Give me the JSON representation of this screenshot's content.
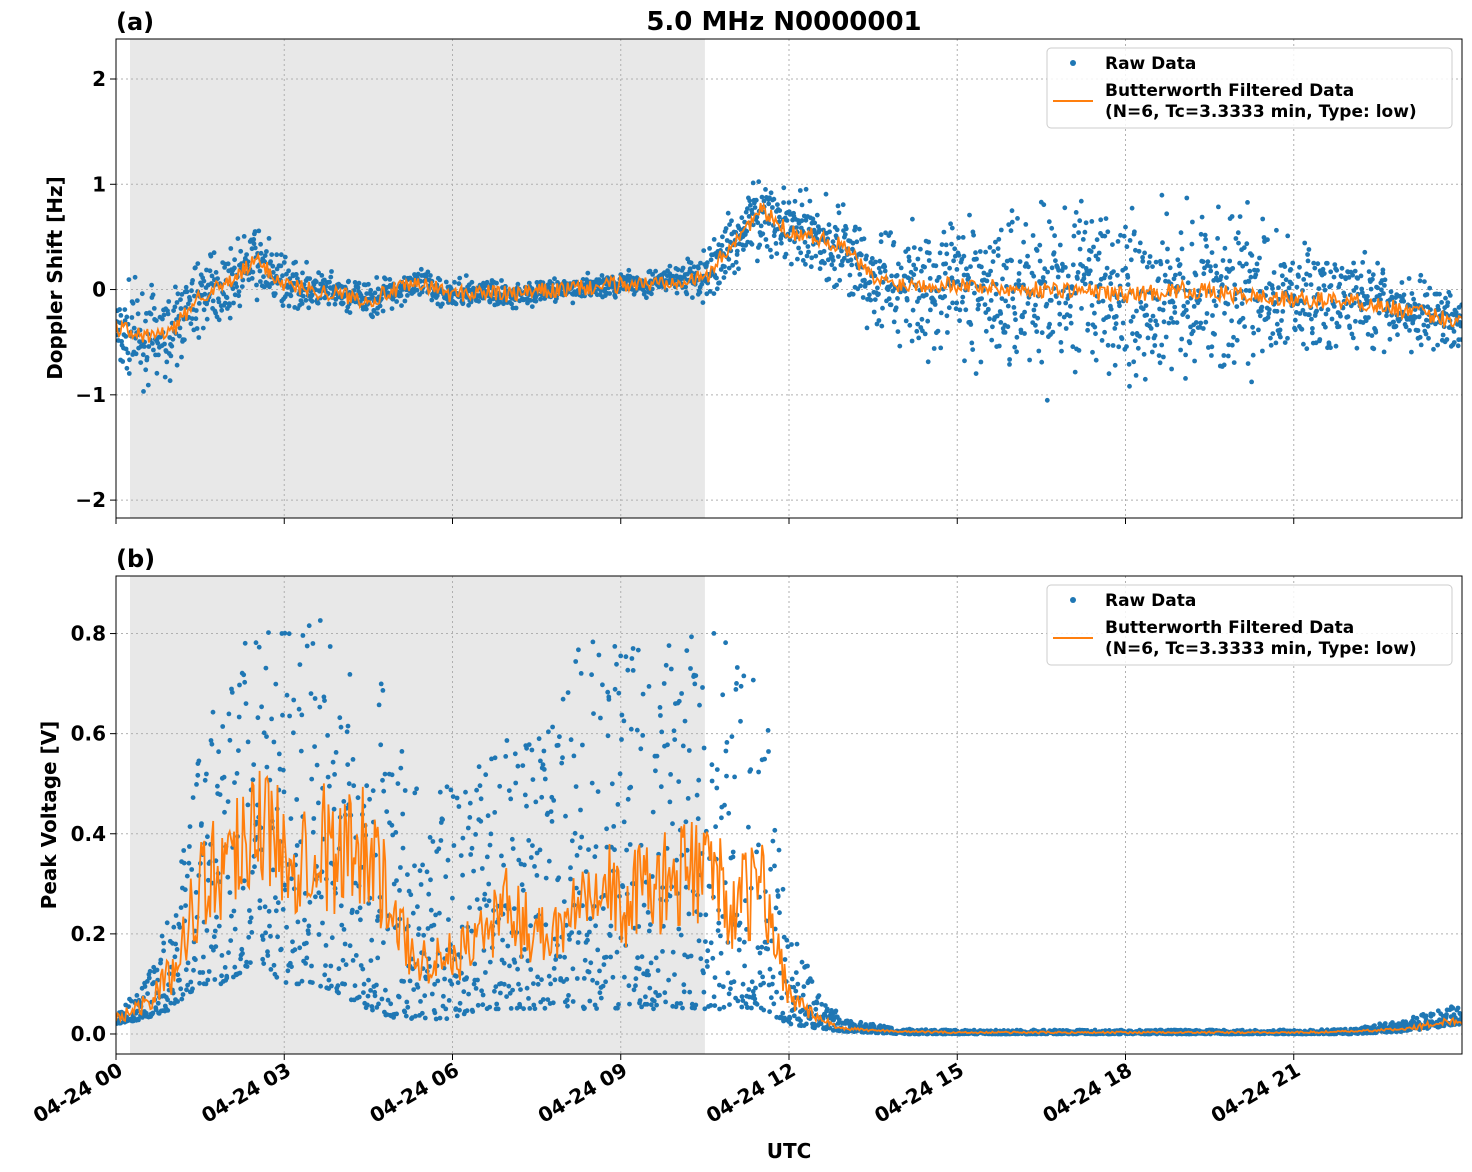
{
  "figure_title": "5.0 MHz N0000001",
  "colors": {
    "raw": "#1f77b4",
    "filtered": "#ff7f0e",
    "night_shade": "#e8e8e8",
    "grid": "#b0b0b0"
  },
  "x_axis": {
    "label": "UTC",
    "ticks": [
      "04-24 00",
      "04-24 03",
      "04-24 06",
      "04-24 09",
      "04-24 12",
      "04-24 15",
      "04-24 18",
      "04-24 21"
    ],
    "tick_hours": [
      0,
      3,
      6,
      9,
      12,
      15,
      18,
      21
    ],
    "range_hours": [
      0,
      24
    ]
  },
  "chart_data": [
    {
      "type": "scatter",
      "panel_label": "(a)",
      "ylabel": "Doppler Shift [Hz]",
      "ylim": [
        -2.17,
        2.38
      ],
      "yticks": [
        -2,
        -1,
        0,
        1,
        2
      ],
      "ytick_labels": [
        "−2",
        "−1",
        "0",
        "1",
        "2"
      ],
      "shaded_hours": [
        0.25,
        10.5
      ],
      "grid": true,
      "legend_position": "top-right",
      "legend": {
        "raw": "Raw Data",
        "filtered_line1": "Butterworth Filtered Data",
        "filtered_line2": "(N=6, Tc=3.3333 min, Type: low)"
      },
      "filtered_series": {
        "x_hours": [
          0,
          0.5,
          1,
          1.5,
          2,
          2.5,
          3,
          3.5,
          4,
          4.5,
          5,
          5.5,
          6,
          6.5,
          7,
          7.5,
          8,
          8.5,
          9,
          9.5,
          10,
          10.5,
          11,
          11.5,
          12,
          12.5,
          13,
          13.5,
          14,
          15,
          16,
          17,
          18,
          19,
          20,
          21,
          22,
          23,
          24
        ],
        "values": [
          -0.35,
          -0.45,
          -0.4,
          -0.05,
          0.05,
          0.28,
          0.05,
          0.0,
          -0.05,
          -0.1,
          0.0,
          0.05,
          -0.05,
          -0.02,
          -0.05,
          -0.02,
          0.0,
          0.02,
          0.05,
          0.05,
          0.1,
          0.1,
          0.45,
          0.75,
          0.55,
          0.5,
          0.4,
          0.1,
          0.05,
          0.05,
          0.0,
          0.0,
          -0.05,
          0.0,
          -0.05,
          -0.1,
          -0.1,
          -0.2,
          -0.3
        ]
      },
      "raw_envelope": {
        "x_hours": [
          0,
          1,
          2,
          2.5,
          3,
          4,
          5,
          6,
          7,
          8,
          9,
          10,
          10.5,
          11,
          11.5,
          12,
          13,
          14,
          15,
          16,
          17,
          18,
          19,
          20,
          21,
          22,
          23,
          24
        ],
        "spread": [
          0.4,
          0.35,
          0.25,
          0.3,
          0.2,
          0.15,
          0.15,
          0.12,
          0.1,
          0.1,
          0.1,
          0.12,
          0.2,
          0.3,
          0.3,
          0.3,
          0.4,
          0.5,
          0.6,
          0.7,
          0.75,
          0.7,
          0.7,
          0.65,
          0.5,
          0.4,
          0.3,
          0.25
        ]
      }
    },
    {
      "type": "scatter",
      "panel_label": "(b)",
      "ylabel": "Peak Voltage [V]",
      "ylim": [
        -0.04,
        0.915
      ],
      "yticks": [
        0.0,
        0.2,
        0.4,
        0.6,
        0.8
      ],
      "ytick_labels": [
        "0.0",
        "0.2",
        "0.4",
        "0.6",
        "0.8"
      ],
      "shaded_hours": [
        0.25,
        10.5
      ],
      "grid": true,
      "legend_position": "top-right",
      "legend": {
        "raw": "Raw Data",
        "filtered_line1": "Butterworth Filtered Data",
        "filtered_line2": "(N=6, Tc=3.3333 min, Type: low)"
      },
      "filtered_series": {
        "x_hours": [
          0,
          0.5,
          1,
          1.5,
          2,
          2.5,
          3,
          3.5,
          4,
          4.5,
          5,
          5.5,
          6,
          6.5,
          7,
          7.5,
          8,
          8.5,
          9,
          9.5,
          10,
          10.5,
          11,
          11.5,
          12,
          12.5,
          13,
          14,
          15,
          16,
          17,
          18,
          19,
          20,
          21,
          22,
          23,
          24
        ],
        "values": [
          0.03,
          0.06,
          0.12,
          0.3,
          0.35,
          0.45,
          0.35,
          0.4,
          0.35,
          0.4,
          0.2,
          0.15,
          0.15,
          0.2,
          0.25,
          0.2,
          0.22,
          0.35,
          0.25,
          0.3,
          0.3,
          0.35,
          0.25,
          0.3,
          0.08,
          0.03,
          0.01,
          0.005,
          0.003,
          0.003,
          0.003,
          0.003,
          0.003,
          0.003,
          0.003,
          0.005,
          0.01,
          0.03
        ]
      },
      "raw_envelope": {
        "x_hours": [
          0,
          0.5,
          1,
          1.5,
          2,
          2.5,
          3,
          3.5,
          4,
          4.5,
          5,
          5.5,
          6,
          6.5,
          7,
          7.5,
          8,
          8.5,
          9,
          9.5,
          10,
          10.5,
          11,
          11.5,
          12,
          12.5,
          13,
          14,
          15,
          16,
          17,
          18,
          19,
          20,
          21,
          22,
          23,
          24
        ],
        "lower": [
          0.02,
          0.03,
          0.05,
          0.1,
          0.1,
          0.15,
          0.1,
          0.1,
          0.08,
          0.05,
          0.03,
          0.03,
          0.03,
          0.05,
          0.05,
          0.05,
          0.05,
          0.05,
          0.05,
          0.05,
          0.05,
          0.05,
          0.05,
          0.05,
          0.02,
          0.01,
          0.005,
          0.0,
          0.0,
          0.0,
          0.0,
          0.0,
          0.0,
          0.0,
          0.0,
          0.0,
          0.005,
          0.02
        ],
        "upper": [
          0.05,
          0.1,
          0.25,
          0.6,
          0.7,
          0.85,
          0.8,
          0.85,
          0.8,
          0.8,
          0.6,
          0.5,
          0.5,
          0.55,
          0.6,
          0.6,
          0.7,
          0.85,
          0.8,
          0.8,
          0.8,
          0.85,
          0.8,
          0.75,
          0.25,
          0.08,
          0.03,
          0.01,
          0.008,
          0.008,
          0.008,
          0.008,
          0.008,
          0.008,
          0.008,
          0.01,
          0.03,
          0.06
        ]
      }
    }
  ]
}
